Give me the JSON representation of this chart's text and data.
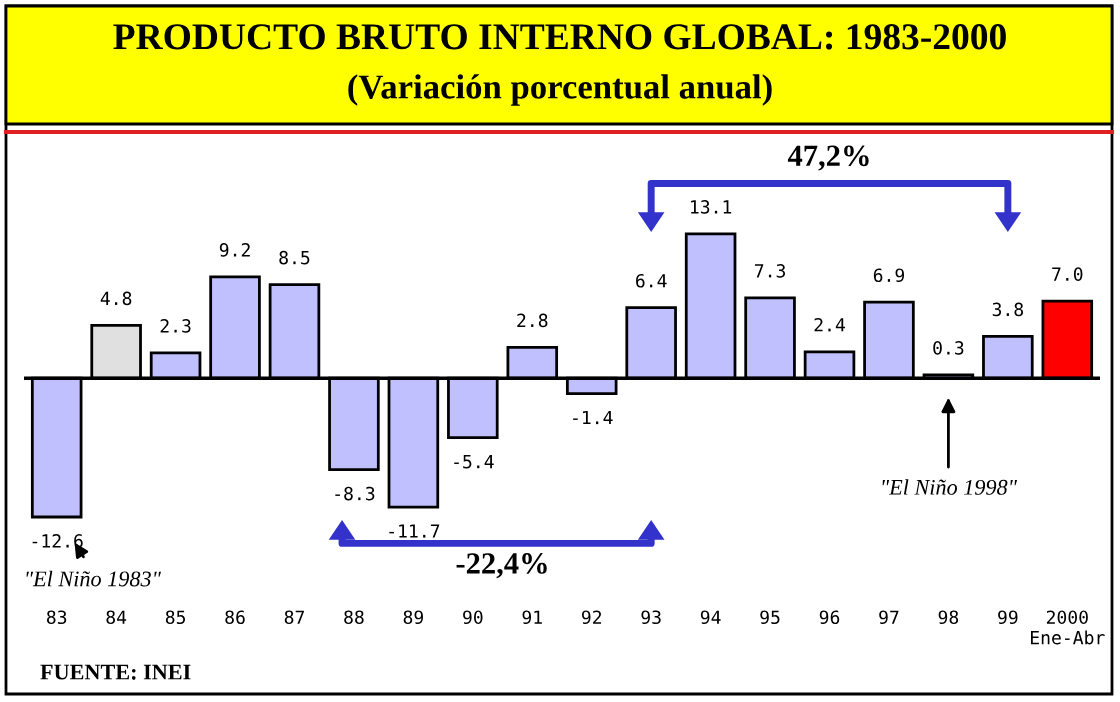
{
  "chart_data": {
    "type": "bar",
    "title": "PRODUCTO BRUTO INTERNO GLOBAL: 1983-2000",
    "subtitle": "(Variación porcentual anual)",
    "categories": [
      "83",
      "84",
      "85",
      "86",
      "87",
      "88",
      "89",
      "90",
      "91",
      "92",
      "93",
      "94",
      "95",
      "96",
      "97",
      "98",
      "99",
      "2000\nEne-Abr"
    ],
    "values": [
      -12.6,
      4.8,
      2.3,
      9.2,
      8.5,
      -8.3,
      -11.7,
      -5.4,
      2.8,
      -1.4,
      6.4,
      13.1,
      7.3,
      2.4,
      6.9,
      0.3,
      3.8,
      7.0
    ],
    "value_labels": [
      "-12.6",
      "4.8",
      "2.3",
      "9.2",
      "8.5",
      "-8.3",
      "-11.7",
      "-5.4",
      "2.8",
      "-1.4",
      "6.4",
      "13.1",
      "7.3",
      "2.4",
      "6.9",
      "0.3",
      "3.8",
      "7.0"
    ],
    "colors": [
      "#c0c0ff",
      "#e0e0e0",
      "#c0c0ff",
      "#c0c0ff",
      "#c0c0ff",
      "#c0c0ff",
      "#c0c0ff",
      "#c0c0ff",
      "#c0c0ff",
      "#c0c0ff",
      "#c0c0ff",
      "#c0c0ff",
      "#c0c0ff",
      "#c0c0ff",
      "#c0c0ff",
      "#c0c0ff",
      "#c0c0ff",
      "#ff0000"
    ],
    "annotations": [
      "\"El Niño 1983\"",
      "\"El Niño 1998\"",
      "-22,4%",
      "47,2%",
      "FUENTE: INEI"
    ],
    "grid": false,
    "legend": false
  }
}
